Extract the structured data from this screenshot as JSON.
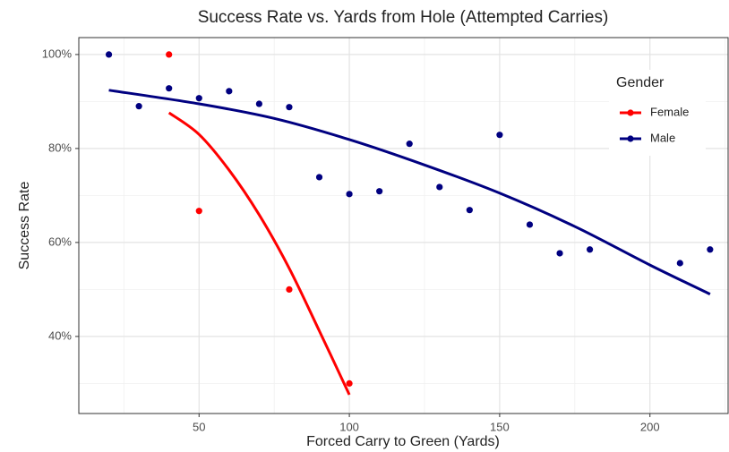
{
  "chart_data": {
    "type": "scatter",
    "title": "Success Rate vs. Yards from Hole (Attempted Carries)",
    "x_label": "Forced Carry to Green (Yards)",
    "y_label": "Success Rate",
    "legend_title": "Gender",
    "legend_position": "top-right",
    "grid": true,
    "xlim": [
      10,
      226
    ],
    "ylim": [
      23.6,
      103.6
    ],
    "xticks": [
      50,
      100,
      150,
      200
    ],
    "x_minor_ticks": [
      25,
      75,
      125,
      175,
      225
    ],
    "yticks": [
      {
        "value": 40,
        "label": "40%"
      },
      {
        "value": 60,
        "label": "60%"
      },
      {
        "value": 80,
        "label": "80%"
      },
      {
        "value": 100,
        "label": "100%"
      }
    ],
    "y_minor_ticks": [
      30,
      50,
      70,
      90
    ],
    "series": [
      {
        "name": "Female",
        "color": "#ff0000",
        "x": [
          40,
          50,
          80,
          100
        ],
        "values": [
          100,
          66.7,
          50,
          30
        ],
        "fit": {
          "x": [
            40,
            50,
            60,
            70,
            80,
            90,
            100
          ],
          "values": [
            87.6,
            83,
            75.4,
            65.9,
            54.5,
            41.2,
            27.6
          ]
        }
      },
      {
        "name": "Male",
        "color": "#000080",
        "x": [
          20,
          30,
          40,
          50,
          60,
          70,
          80,
          90,
          100,
          110,
          120,
          130,
          140,
          150,
          160,
          170,
          180,
          210,
          220
        ],
        "values": [
          100,
          89,
          92.8,
          90.7,
          92.2,
          89.5,
          88.8,
          73.9,
          70.3,
          70.9,
          81,
          71.8,
          66.9,
          82.9,
          63.8,
          57.7,
          58.5,
          55.6,
          58.5
        ],
        "fit": {
          "x": [
            20,
            50,
            75,
            100,
            125,
            150,
            175,
            200,
            220
          ],
          "values": [
            92.4,
            89.5,
            86.4,
            81.9,
            76.5,
            70.5,
            63.4,
            55.2,
            49
          ]
        }
      }
    ]
  }
}
